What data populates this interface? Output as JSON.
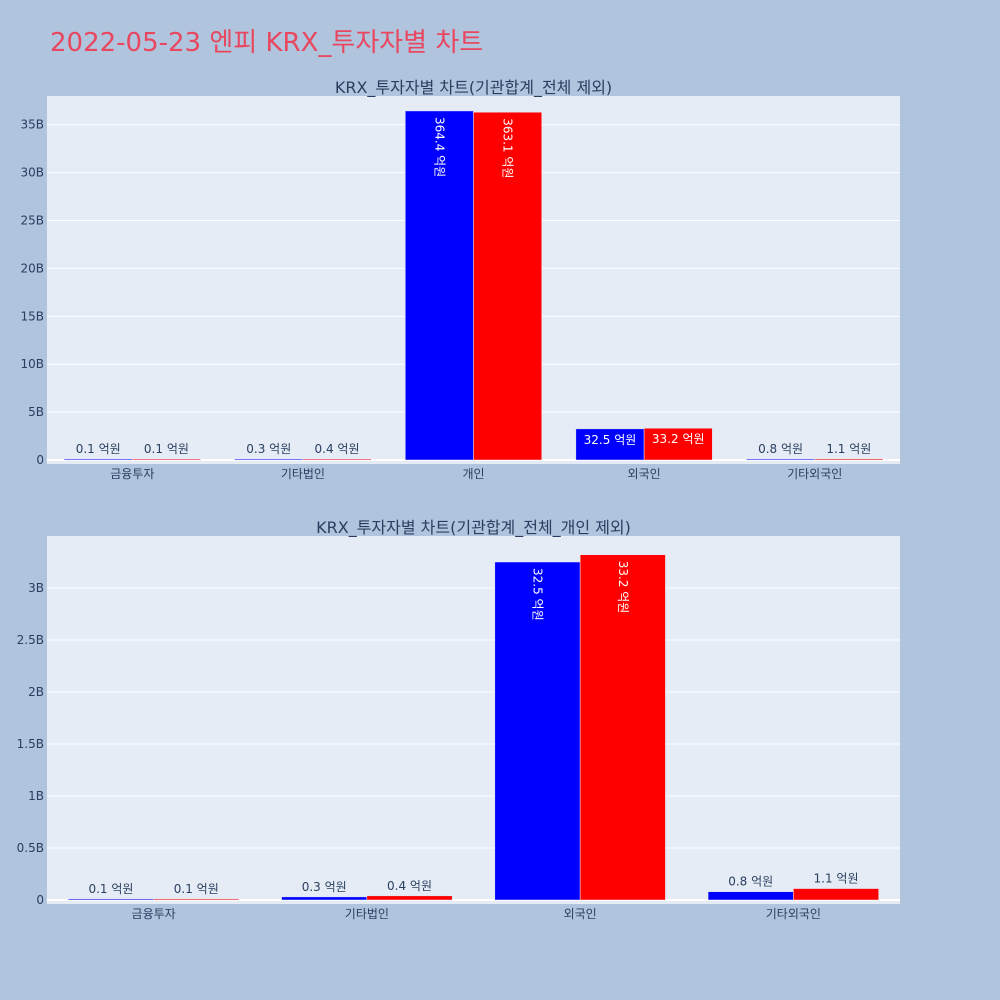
{
  "page": {
    "title": "2022-05-23 엔피 KRX_투자자별 차트"
  },
  "colors": {
    "series_a": "#0000ff",
    "series_b": "#ff0000",
    "plot_bg": "#e5ecf6",
    "page_bg": "#b0c4de",
    "title": "#e8475f"
  },
  "chart_data": [
    {
      "type": "bar",
      "title": "KRX_투자자별 차트(기관합계_전체 제외)",
      "categories": [
        "금융투자",
        "기타법인",
        "개인",
        "외국인",
        "기타외국인"
      ],
      "ylim": [
        0,
        38000000000
      ],
      "yticks": [
        0,
        5000000000,
        10000000000,
        15000000000,
        20000000000,
        25000000000,
        30000000000,
        35000000000
      ],
      "ytick_labels": [
        "0",
        "5B",
        "10B",
        "15B",
        "20B",
        "25B",
        "30B",
        "35B"
      ],
      "grid": true,
      "series": [
        {
          "values": [
            10000000,
            30000000,
            36440000000,
            3250000000,
            80000000
          ],
          "labels": [
            "0.1 억원",
            "0.3 억원",
            "364.4 억원",
            "32.5 억원",
            "0.8 억원"
          ]
        },
        {
          "values": [
            10000000,
            40000000,
            36310000000,
            3320000000,
            110000000
          ],
          "labels": [
            "0.1 억원",
            "0.4 억원",
            "363.1 억원",
            "33.2 억원",
            "1.1 억원"
          ]
        }
      ]
    },
    {
      "type": "bar",
      "title": "KRX_투자자별 차트(기관합계_전체_개인 제외)",
      "categories": [
        "금융투자",
        "기타법인",
        "외국인",
        "기타외국인"
      ],
      "ylim": [
        0,
        3500000000
      ],
      "yticks": [
        0,
        500000000,
        1000000000,
        1500000000,
        2000000000,
        2500000000,
        3000000000
      ],
      "ytick_labels": [
        "0",
        "0.5B",
        "1B",
        "1.5B",
        "2B",
        "2.5B",
        "3B"
      ],
      "grid": true,
      "series": [
        {
          "values": [
            10000000,
            30000000,
            3250000000,
            80000000
          ],
          "labels": [
            "0.1 억원",
            "0.3 억원",
            "32.5 억원",
            "0.8 억원"
          ]
        },
        {
          "values": [
            10000000,
            40000000,
            3320000000,
            110000000
          ],
          "labels": [
            "0.1 억원",
            "0.4 억원",
            "33.2 억원",
            "1.1 억원"
          ]
        }
      ]
    }
  ]
}
